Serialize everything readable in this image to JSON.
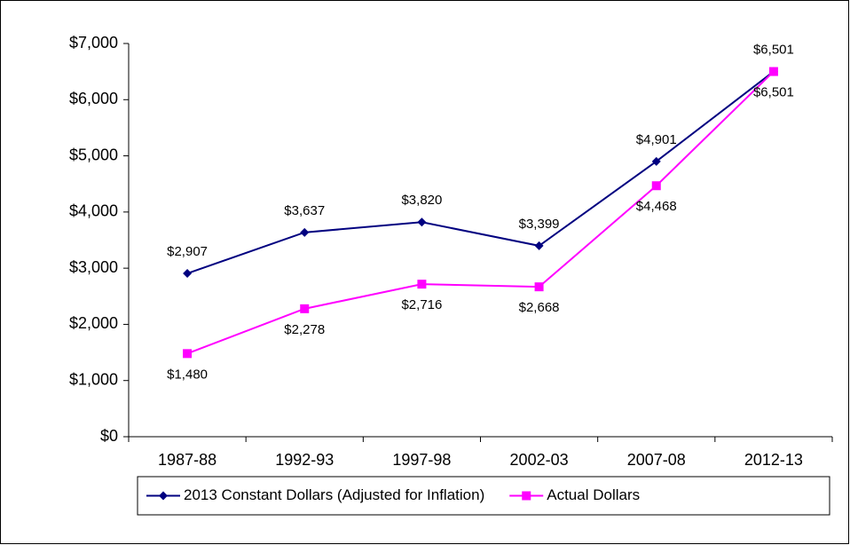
{
  "chart_data": {
    "type": "line",
    "categories": [
      "1987-88",
      "1992-93",
      "1997-98",
      "2002-03",
      "2007-08",
      "2012-13"
    ],
    "series": [
      {
        "name": "2013 Constant Dollars (Adjusted for Inflation)",
        "color": "#000080",
        "marker": "diamond",
        "values": [
          2907,
          3637,
          3820,
          3399,
          4901,
          6501
        ],
        "value_labels": [
          "$2,907",
          "$3,637",
          "$3,820",
          "$3,399",
          "$4,901",
          "$6,501"
        ]
      },
      {
        "name": "Actual Dollars",
        "color": "#ff00ff",
        "marker": "square",
        "values": [
          1480,
          2278,
          2716,
          2668,
          4468,
          6501
        ],
        "value_labels": [
          "$1,480",
          "$2,278",
          "$2,716",
          "$2,668",
          "$4,468",
          "$6,501"
        ]
      }
    ],
    "ylim": [
      0,
      7000
    ],
    "yticks": [
      {
        "value": 0,
        "label": "$0"
      },
      {
        "value": 1000,
        "label": "$1,000"
      },
      {
        "value": 2000,
        "label": "$2,000"
      },
      {
        "value": 3000,
        "label": "$3,000"
      },
      {
        "value": 4000,
        "label": "$4,000"
      },
      {
        "value": 5000,
        "label": "$5,000"
      },
      {
        "value": 6000,
        "label": "$6,000"
      },
      {
        "value": 7000,
        "label": "$7,000"
      }
    ],
    "grid": false,
    "legend": "bottom"
  }
}
